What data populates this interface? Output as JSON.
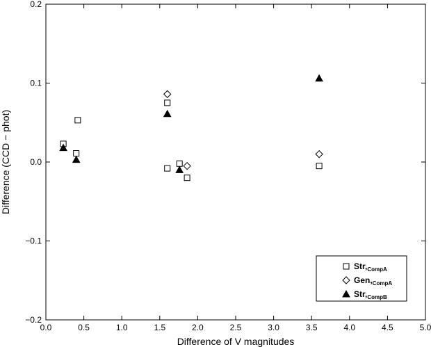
{
  "chart_data": {
    "type": "scatter",
    "title": "",
    "xlabel": "Difference of V magnitudes",
    "ylabel": "Difference (CCD − phot)",
    "xlim": [
      0.0,
      5.0
    ],
    "ylim": [
      -0.2,
      0.2
    ],
    "x_ticks": [
      0.0,
      0.5,
      1.0,
      1.5,
      2.0,
      2.5,
      3.0,
      3.5,
      4.0,
      4.5,
      5.0
    ],
    "x_tick_labels": [
      "0.0",
      "0.5",
      "1.0",
      "1.5",
      "2.0",
      "2.5",
      "3.0",
      "3.5",
      "4.0",
      "4.5",
      "5.0"
    ],
    "y_ticks": [
      -0.2,
      -0.1,
      0.0,
      0.1,
      0.2
    ],
    "y_tick_labels": [
      "−0.2",
      "−0.1",
      "0.0",
      "0.1",
      "0.2"
    ],
    "grid": false,
    "legend_position": "bottom-right",
    "series": [
      {
        "name": "Str,",
        "name_sub": "CompA",
        "marker": "square-open",
        "color": "#000000",
        "points": [
          {
            "x": 0.23,
            "y": 0.023
          },
          {
            "x": 0.4,
            "y": 0.011
          },
          {
            "x": 0.42,
            "y": 0.053
          },
          {
            "x": 1.6,
            "y": 0.075
          },
          {
            "x": 1.6,
            "y": -0.008
          },
          {
            "x": 1.76,
            "y": -0.002
          },
          {
            "x": 1.86,
            "y": -0.02
          },
          {
            "x": 3.6,
            "y": -0.005
          }
        ]
      },
      {
        "name": "Gen,",
        "name_sub": "CompA",
        "marker": "diamond-open",
        "color": "#000000",
        "points": [
          {
            "x": 1.6,
            "y": 0.086
          },
          {
            "x": 1.86,
            "y": -0.005
          },
          {
            "x": 3.6,
            "y": 0.01
          }
        ]
      },
      {
        "name": "Str,",
        "name_sub": "CompB",
        "marker": "triangle-filled",
        "color": "#000000",
        "points": [
          {
            "x": 0.23,
            "y": 0.018
          },
          {
            "x": 0.4,
            "y": 0.003
          },
          {
            "x": 1.6,
            "y": 0.061
          },
          {
            "x": 1.76,
            "y": -0.01
          },
          {
            "x": 3.6,
            "y": 0.106
          }
        ]
      }
    ]
  }
}
